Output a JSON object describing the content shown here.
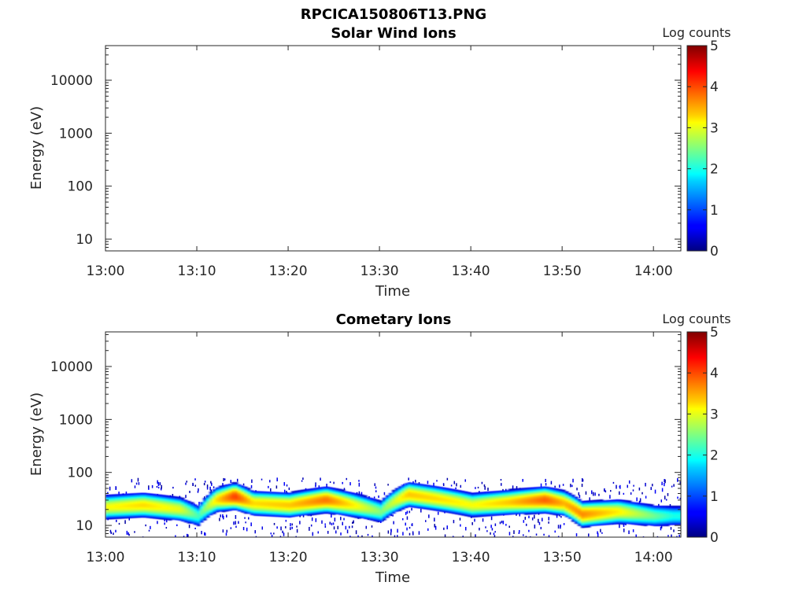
{
  "figure_title": "RPCICA150806T13.PNG",
  "colorbar": {
    "label": "Log counts",
    "ticks": [
      "0",
      "1",
      "2",
      "3",
      "4",
      "5"
    ],
    "range": [
      0,
      5
    ],
    "colormap": "jet"
  },
  "chart_data": [
    {
      "type": "heatmap",
      "title": "Solar Wind Ions",
      "xlabel": "Time",
      "ylabel": "Energy (eV)",
      "y_scale": "log",
      "ylim": [
        6,
        45000
      ],
      "xlim": [
        "13:00",
        "14:03"
      ],
      "x_ticks": [
        "13:00",
        "13:10",
        "13:20",
        "13:30",
        "13:40",
        "13:50",
        "14:00"
      ],
      "y_ticks": [
        "10",
        "100",
        "1000",
        "10000"
      ],
      "series": []
    },
    {
      "type": "heatmap",
      "title": "Cometary Ions",
      "xlabel": "Time",
      "ylabel": "Energy (eV)",
      "y_scale": "log",
      "ylim": [
        6,
        45000
      ],
      "xlim": [
        "13:00",
        "14:03"
      ],
      "x_ticks": [
        "13:00",
        "13:10",
        "13:20",
        "13:30",
        "13:40",
        "13:50",
        "14:00"
      ],
      "y_ticks": [
        "10",
        "100",
        "1000",
        "10000"
      ],
      "series": [
        {
          "peak_energy_ev": {
            "time": [
              "13:00",
              "13:04",
              "13:08",
              "13:10",
              "13:12",
              "13:14",
              "13:16",
              "13:20",
              "13:24",
              "13:27",
              "13:30",
              "13:33",
              "13:36",
              "13:40",
              "13:44",
              "13:48",
              "13:50",
              "13:52",
              "13:56",
              "14:00",
              "14:02"
            ],
            "energy": [
              22,
              24,
              20,
              15,
              30,
              35,
              26,
              24,
              30,
              24,
              18,
              38,
              32,
              24,
              27,
              30,
              26,
              16,
              18,
              15,
              15
            ]
          },
          "peak_log_counts": {
            "time": [
              "13:00",
              "13:04",
              "13:08",
              "13:10",
              "13:12",
              "13:14",
              "13:16",
              "13:20",
              "13:24",
              "13:27",
              "13:30",
              "13:33",
              "13:36",
              "13:40",
              "13:44",
              "13:48",
              "13:50",
              "13:52",
              "13:56",
              "14:00",
              "14:02"
            ],
            "value": [
              3.1,
              3.3,
              3.0,
              2.2,
              3.3,
              4.1,
              3.3,
              3.4,
              3.8,
              3.2,
              2.5,
              3.4,
              3.3,
              3.1,
              3.4,
              3.9,
              3.5,
              3.7,
              3.2,
              2.4,
              2.0
            ]
          },
          "scatter_upper_energy_ev": 80
        }
      ]
    }
  ]
}
